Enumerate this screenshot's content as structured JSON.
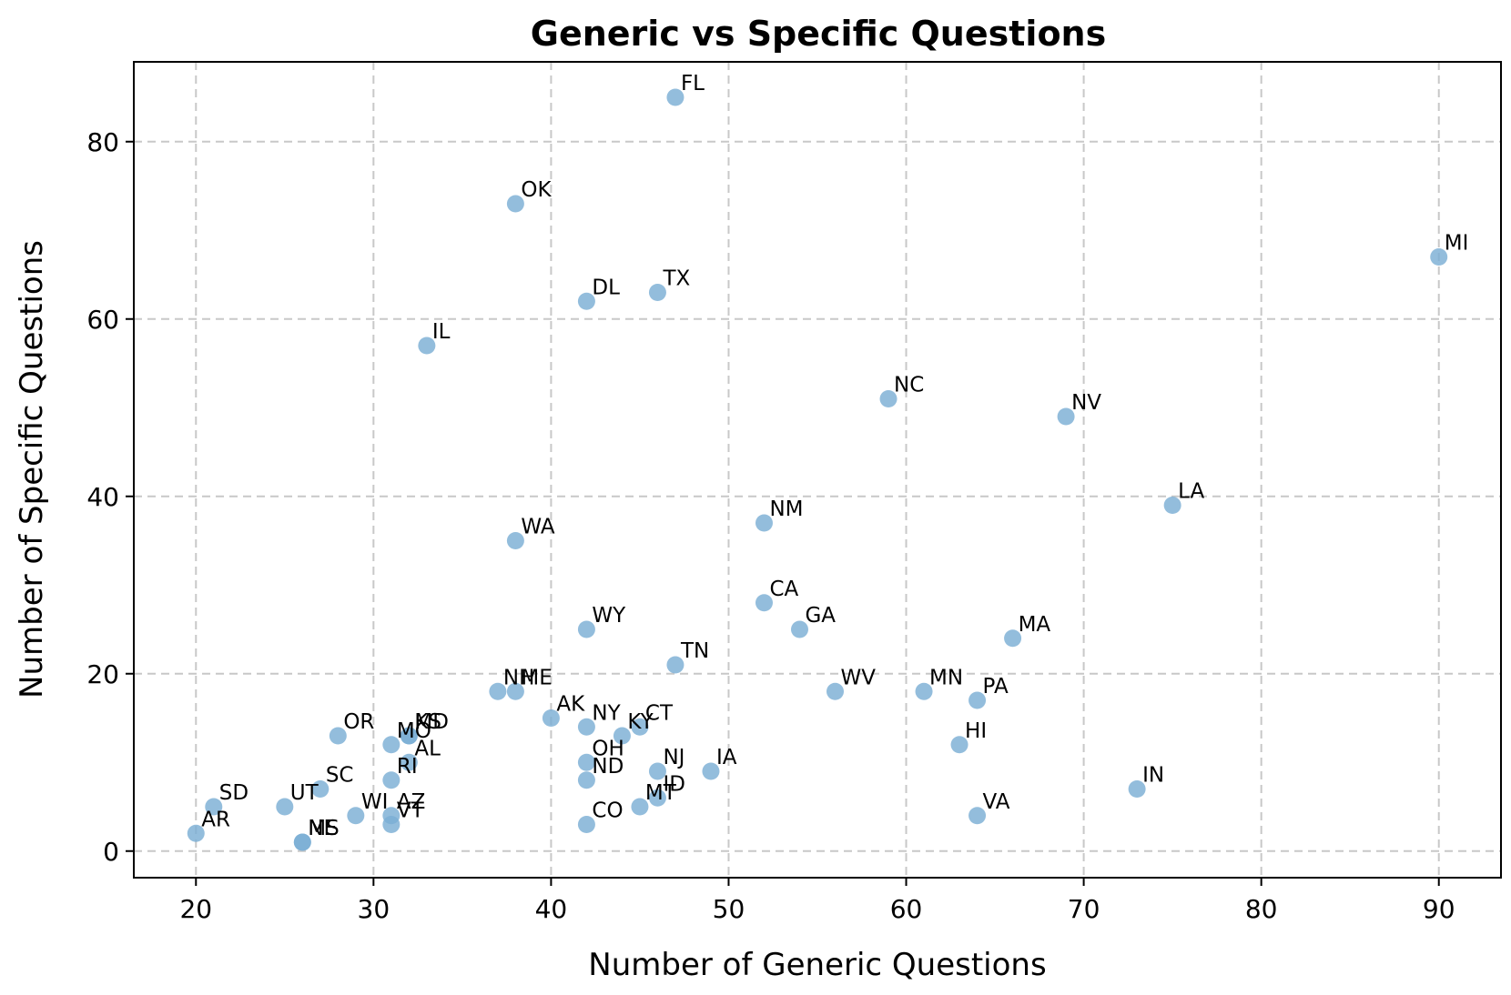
{
  "chart_data": {
    "type": "scatter",
    "title": "Generic vs Specific Questions",
    "xlabel": "Number of Generic Questions",
    "ylabel": "Number of Specific Questions",
    "xlim": [
      16.5,
      93.5
    ],
    "ylim": [
      -3,
      89
    ],
    "xticks": [
      20,
      30,
      40,
      50,
      60,
      70,
      80,
      90
    ],
    "yticks": [
      0,
      20,
      40,
      60,
      80
    ],
    "grid": true,
    "marker_color": "#7bafd4",
    "points": [
      {
        "label": "FL",
        "x": 47,
        "y": 85
      },
      {
        "label": "OK",
        "x": 38,
        "y": 73
      },
      {
        "label": "MI",
        "x": 90,
        "y": 67
      },
      {
        "label": "TX",
        "x": 46,
        "y": 63
      },
      {
        "label": "DL",
        "x": 42,
        "y": 62
      },
      {
        "label": "IL",
        "x": 33,
        "y": 57
      },
      {
        "label": "NC",
        "x": 59,
        "y": 51
      },
      {
        "label": "NV",
        "x": 69,
        "y": 49
      },
      {
        "label": "LA",
        "x": 75,
        "y": 39
      },
      {
        "label": "NM",
        "x": 52,
        "y": 37
      },
      {
        "label": "WA",
        "x": 38,
        "y": 35
      },
      {
        "label": "CA",
        "x": 52,
        "y": 28
      },
      {
        "label": "GA",
        "x": 54,
        "y": 25
      },
      {
        "label": "WY",
        "x": 42,
        "y": 25
      },
      {
        "label": "MA",
        "x": 66,
        "y": 24
      },
      {
        "label": "TN",
        "x": 47,
        "y": 21
      },
      {
        "label": "NH",
        "x": 37,
        "y": 18
      },
      {
        "label": "ME",
        "x": 38,
        "y": 18
      },
      {
        "label": "WV",
        "x": 56,
        "y": 18
      },
      {
        "label": "MN",
        "x": 61,
        "y": 18
      },
      {
        "label": "PA",
        "x": 64,
        "y": 17
      },
      {
        "label": "AK",
        "x": 40,
        "y": 15
      },
      {
        "label": "NY",
        "x": 42,
        "y": 14
      },
      {
        "label": "CT",
        "x": 45,
        "y": 14
      },
      {
        "label": "KY",
        "x": 44,
        "y": 13
      },
      {
        "label": "OR",
        "x": 28,
        "y": 13
      },
      {
        "label": "KS",
        "x": 32,
        "y": 13
      },
      {
        "label": "MD",
        "x": 32,
        "y": 13
      },
      {
        "label": "MO",
        "x": 31,
        "y": 12
      },
      {
        "label": "HI",
        "x": 63,
        "y": 12
      },
      {
        "label": "AL",
        "x": 32,
        "y": 10
      },
      {
        "label": "OH",
        "x": 42,
        "y": 10
      },
      {
        "label": "NJ",
        "x": 46,
        "y": 9
      },
      {
        "label": "IA",
        "x": 49,
        "y": 9
      },
      {
        "label": "RI",
        "x": 31,
        "y": 8
      },
      {
        "label": "ND",
        "x": 42,
        "y": 8
      },
      {
        "label": "SC",
        "x": 27,
        "y": 7
      },
      {
        "label": "IN",
        "x": 73,
        "y": 7
      },
      {
        "label": "ID",
        "x": 46,
        "y": 6
      },
      {
        "label": "MT",
        "x": 45,
        "y": 5
      },
      {
        "label": "SD",
        "x": 21,
        "y": 5
      },
      {
        "label": "UT",
        "x": 25,
        "y": 5
      },
      {
        "label": "WI",
        "x": 29,
        "y": 4
      },
      {
        "label": "AZ",
        "x": 31,
        "y": 4
      },
      {
        "label": "VA",
        "x": 64,
        "y": 4
      },
      {
        "label": "VT",
        "x": 31,
        "y": 3
      },
      {
        "label": "CO",
        "x": 42,
        "y": 3
      },
      {
        "label": "AR",
        "x": 20,
        "y": 2
      },
      {
        "label": "NE",
        "x": 26,
        "y": 1
      },
      {
        "label": "MS",
        "x": 26,
        "y": 1
      }
    ]
  }
}
